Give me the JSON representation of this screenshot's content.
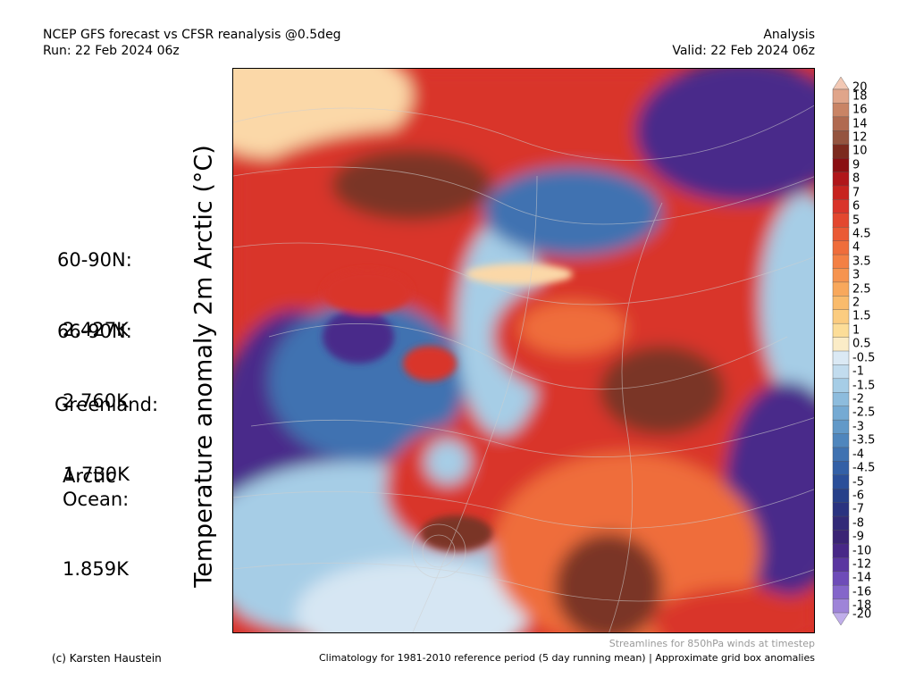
{
  "header": {
    "title_line1": "NCEP GFS forecast vs CFSR reanalysis @0.5deg",
    "title_line2": "Run: 22 Feb 2024 06z",
    "right_line1": "Analysis",
    "right_line2": "Valid: 22 Feb 2024 06z"
  },
  "y_axis_label": "Temperature anomaly 2m Arctic (°C)",
  "stats": [
    {
      "region": "60-90N:",
      "value": "2.427K"
    },
    {
      "region": "66-90N:",
      "value": "2.760K"
    },
    {
      "region": "Greenland:",
      "value": "1.730K"
    },
    {
      "region": "Arctic\nOcean:",
      "value": "1.859K"
    }
  ],
  "colorbar": {
    "labels": [
      "20",
      "18",
      "16",
      "14",
      "12",
      "10",
      "9",
      "8",
      "7",
      "6",
      "5",
      "4.5",
      "4",
      "3.5",
      "3",
      "2.5",
      "2",
      "1.5",
      "1",
      "0.5",
      "-0.5",
      "-1",
      "-1.5",
      "-2",
      "-2.5",
      "-3",
      "-3.5",
      "-4",
      "-4.5",
      "-5",
      "-6",
      "-7",
      "-8",
      "-9",
      "-10",
      "-12",
      "-14",
      "-16",
      "-18",
      "-20"
    ],
    "colors": [
      "#f2c8b4",
      "#e0a58a",
      "#c98465",
      "#b06a50",
      "#94543f",
      "#7c2a1e",
      "#8a0f12",
      "#b0161a",
      "#c7231f",
      "#d9342a",
      "#e3472f",
      "#ea5a35",
      "#ef6d3b",
      "#f38044",
      "#f6944f",
      "#f8a85c",
      "#f9bb6c",
      "#fbcc80",
      "#fcdd98",
      "#fbecc7",
      "#dbe9f4",
      "#c2dcee",
      "#a6cde6",
      "#8dbcdd",
      "#75aad3",
      "#6299c8",
      "#4f86bd",
      "#3f72b1",
      "#3360a6",
      "#2b4f99",
      "#26408a",
      "#2a3380",
      "#322a78",
      "#3a2474",
      "#482887",
      "#5a36a0",
      "#6e4cb8",
      "#8466ca",
      "#9e84d8",
      "#c0aeea"
    ]
  },
  "map": {
    "colors": {
      "hot": "#7a3425",
      "warm": "#d9342a",
      "orange": "#ef6d3b",
      "pale": "#fbd8a8",
      "cold": "#3f72b1",
      "coldlight": "#a6cde6",
      "verycold": "#4a2c8a",
      "ice": "#d6e6f3"
    }
  },
  "footer": {
    "credit": "(c) Karsten Haustein",
    "streamlines": "Streamlines for 850hPa winds at timestep",
    "climatology": "Climatology for 1981-2010 reference period (5 day running mean) | Approximate grid box anomalies"
  }
}
